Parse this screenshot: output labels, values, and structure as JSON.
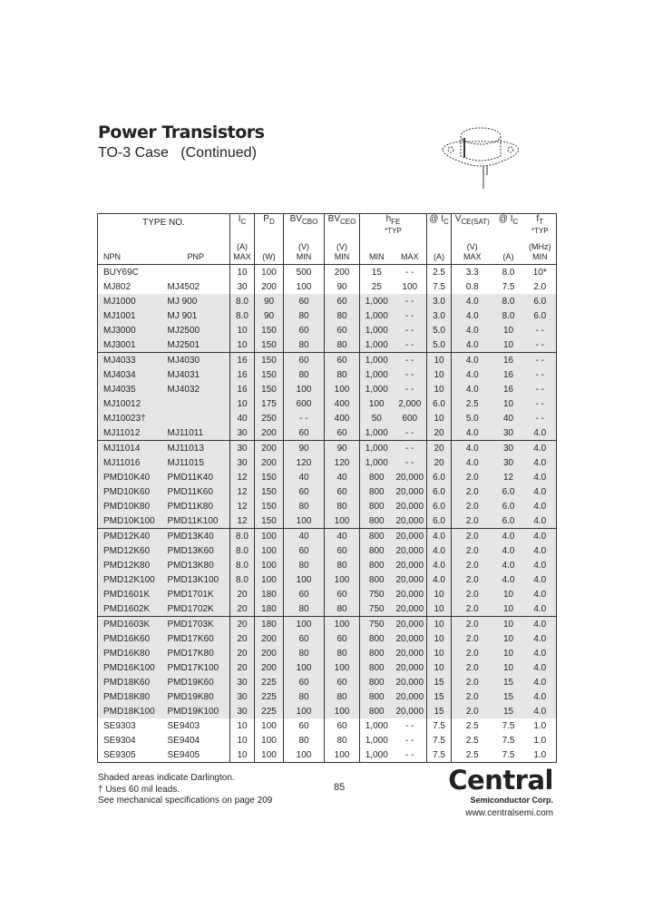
{
  "header": {
    "title": "Power Transistors",
    "subtitle": "TO-3 Case   (Continued)"
  },
  "table": {
    "type_no": "TYPE NO.",
    "col_heads": [
      "I",
      "C",
      "P",
      "D",
      "BV",
      "CBO",
      "BV",
      "CEO",
      "h",
      "FE",
      "*TYP",
      "@ I",
      "C",
      "V",
      "CE(SAT)",
      "@ I",
      "C",
      "f",
      "T",
      "*TYP"
    ],
    "units": [
      "NPN",
      "PNP",
      "(A)\nMAX",
      "(W)",
      "(V)\nMIN",
      "(V)\nMIN",
      "MIN",
      "MAX",
      "(A)",
      "(V)\nMAX",
      "(A)",
      "(MHz)\nMIN"
    ],
    "rows": [
      {
        "c": [
          "BUY69C",
          "",
          "10",
          "100",
          "500",
          "200",
          "15",
          "- -",
          "2.5",
          "3.3",
          "8.0",
          "10*"
        ],
        "shade": false,
        "grp": false
      },
      {
        "c": [
          "MJ802",
          "MJ4502",
          "30",
          "200",
          "100",
          "90",
          "25",
          "100",
          "7.5",
          "0.8",
          "7.5",
          "2.0"
        ],
        "shade": false,
        "grp": false
      },
      {
        "c": [
          "MJ1000",
          "MJ 900",
          "8.0",
          "90",
          "60",
          "60",
          "1,000",
          "- -",
          "3.0",
          "4.0",
          "8.0",
          "6.0"
        ],
        "shade": true,
        "grp": false
      },
      {
        "c": [
          "MJ1001",
          "MJ 901",
          "8.0",
          "90",
          "80",
          "80",
          "1,000",
          "- -",
          "3.0",
          "4.0",
          "8.0",
          "6.0"
        ],
        "shade": true,
        "grp": false
      },
      {
        "c": [
          "MJ3000",
          "MJ2500",
          "10",
          "150",
          "60",
          "60",
          "1,000",
          "- -",
          "5.0",
          "4.0",
          "10",
          "- -"
        ],
        "shade": true,
        "grp": false
      },
      {
        "c": [
          "MJ3001",
          "MJ2501",
          "10",
          "150",
          "80",
          "80",
          "1,000",
          "- -",
          "5.0",
          "4.0",
          "10",
          "- -"
        ],
        "shade": true,
        "grp": false
      },
      {
        "c": [
          "MJ4033",
          "MJ4030",
          "16",
          "150",
          "60",
          "60",
          "1,000",
          "- -",
          "10",
          "4.0",
          "16",
          "- -"
        ],
        "shade": true,
        "grp": true
      },
      {
        "c": [
          "MJ4034",
          "MJ4031",
          "16",
          "150",
          "80",
          "80",
          "1,000",
          "- -",
          "10",
          "4.0",
          "16",
          "- -"
        ],
        "shade": true,
        "grp": false
      },
      {
        "c": [
          "MJ4035",
          "MJ4032",
          "16",
          "150",
          "100",
          "100",
          "1,000",
          "- -",
          "10",
          "4.0",
          "16",
          "- -"
        ],
        "shade": true,
        "grp": false
      },
      {
        "c": [
          "MJ10012",
          "",
          "10",
          "175",
          "600",
          "400",
          "100",
          "2,000",
          "6.0",
          "2.5",
          "10",
          "- -"
        ],
        "shade": true,
        "grp": false
      },
      {
        "c": [
          "MJ10023†",
          "",
          "40",
          "250",
          "- -",
          "400",
          "50",
          "600",
          "10",
          "5.0",
          "40",
          "- -"
        ],
        "shade": true,
        "grp": false
      },
      {
        "c": [
          "MJ11012",
          "MJ11011",
          "30",
          "200",
          "60",
          "60",
          "1,000",
          "- -",
          "20",
          "4.0",
          "30",
          "4.0"
        ],
        "shade": true,
        "grp": false
      },
      {
        "c": [
          "MJ11014",
          "MJ11013",
          "30",
          "200",
          "90",
          "90",
          "1,000",
          "- -",
          "20",
          "4.0",
          "30",
          "4.0"
        ],
        "shade": true,
        "grp": true
      },
      {
        "c": [
          "MJ11016",
          "MJ11015",
          "30",
          "200",
          "120",
          "120",
          "1,000",
          "- -",
          "20",
          "4.0",
          "30",
          "4.0"
        ],
        "shade": true,
        "grp": false
      },
      {
        "c": [
          "PMD10K40",
          "PMD11K40",
          "12",
          "150",
          "40",
          "40",
          "800",
          "20,000",
          "6.0",
          "2.0",
          "12",
          "4.0"
        ],
        "shade": true,
        "grp": false
      },
      {
        "c": [
          "PMD10K60",
          "PMD11K60",
          "12",
          "150",
          "60",
          "60",
          "800",
          "20,000",
          "6.0",
          "2.0",
          "6.0",
          "4.0"
        ],
        "shade": true,
        "grp": false
      },
      {
        "c": [
          "PMD10K80",
          "PMD11K80",
          "12",
          "150",
          "80",
          "80",
          "800",
          "20,000",
          "6.0",
          "2.0",
          "6.0",
          "4.0"
        ],
        "shade": true,
        "grp": false
      },
      {
        "c": [
          "PMD10K100",
          "PMD11K100",
          "12",
          "150",
          "100",
          "100",
          "800",
          "20,000",
          "6.0",
          "2.0",
          "6.0",
          "4.0"
        ],
        "shade": true,
        "grp": false
      },
      {
        "c": [
          "PMD12K40",
          "PMD13K40",
          "8.0",
          "100",
          "40",
          "40",
          "800",
          "20,000",
          "4.0",
          "2.0",
          "4.0",
          "4.0"
        ],
        "shade": true,
        "grp": true
      },
      {
        "c": [
          "PMD12K60",
          "PMD13K60",
          "8.0",
          "100",
          "60",
          "60",
          "800",
          "20,000",
          "4.0",
          "2.0",
          "4.0",
          "4.0"
        ],
        "shade": true,
        "grp": false
      },
      {
        "c": [
          "PMD12K80",
          "PMD13K80",
          "8.0",
          "100",
          "80",
          "80",
          "800",
          "20,000",
          "4.0",
          "2.0",
          "4.0",
          "4.0"
        ],
        "shade": true,
        "grp": false
      },
      {
        "c": [
          "PMD12K100",
          "PMD13K100",
          "8.0",
          "100",
          "100",
          "100",
          "800",
          "20,000",
          "4.0",
          "2.0",
          "4.0",
          "4.0"
        ],
        "shade": true,
        "grp": false
      },
      {
        "c": [
          "PMD1601K",
          "PMD1701K",
          "20",
          "180",
          "60",
          "60",
          "750",
          "20,000",
          "10",
          "2.0",
          "10",
          "4.0"
        ],
        "shade": true,
        "grp": false
      },
      {
        "c": [
          "PMD1602K",
          "PMD1702K",
          "20",
          "180",
          "80",
          "80",
          "750",
          "20,000",
          "10",
          "2.0",
          "10",
          "4.0"
        ],
        "shade": true,
        "grp": false
      },
      {
        "c": [
          "PMD1603K",
          "PMD1703K",
          "20",
          "180",
          "100",
          "100",
          "750",
          "20,000",
          "10",
          "2.0",
          "10",
          "4.0"
        ],
        "shade": true,
        "grp": true
      },
      {
        "c": [
          "PMD16K60",
          "PMD17K60",
          "20",
          "200",
          "60",
          "60",
          "800",
          "20,000",
          "10",
          "2.0",
          "10",
          "4.0"
        ],
        "shade": true,
        "grp": false
      },
      {
        "c": [
          "PMD16K80",
          "PMD17K80",
          "20",
          "200",
          "80",
          "80",
          "800",
          "20,000",
          "10",
          "2.0",
          "10",
          "4.0"
        ],
        "shade": true,
        "grp": false
      },
      {
        "c": [
          "PMD16K100",
          "PMD17K100",
          "20",
          "200",
          "100",
          "100",
          "800",
          "20,000",
          "10",
          "2.0",
          "10",
          "4.0"
        ],
        "shade": true,
        "grp": false
      },
      {
        "c": [
          "PMD18K60",
          "PMD19K60",
          "30",
          "225",
          "60",
          "60",
          "800",
          "20,000",
          "15",
          "2.0",
          "15",
          "4.0"
        ],
        "shade": true,
        "grp": false
      },
      {
        "c": [
          "PMD18K80",
          "PMD19K80",
          "30",
          "225",
          "80",
          "80",
          "800",
          "20,000",
          "15",
          "2.0",
          "15",
          "4.0"
        ],
        "shade": true,
        "grp": false
      },
      {
        "c": [
          "PMD18K100",
          "PMD19K100",
          "30",
          "225",
          "100",
          "100",
          "800",
          "20,000",
          "15",
          "2.0",
          "15",
          "4.0"
        ],
        "shade": true,
        "grp": false
      },
      {
        "c": [
          "SE9303",
          "SE9403",
          "10",
          "100",
          "60",
          "60",
          "1,000",
          "- -",
          "7.5",
          "2.5",
          "7.5",
          "1.0"
        ],
        "shade": false,
        "grp": false
      },
      {
        "c": [
          "SE9304",
          "SE9404",
          "10",
          "100",
          "80",
          "80",
          "1,000",
          "- -",
          "7.5",
          "2.5",
          "7.5",
          "1.0"
        ],
        "shade": false,
        "grp": false
      },
      {
        "c": [
          "SE9305",
          "SE9405",
          "10",
          "100",
          "100",
          "100",
          "1,000",
          "- -",
          "7.5",
          "2.5",
          "7.5",
          "1.0"
        ],
        "shade": false,
        "grp": false
      }
    ]
  },
  "footer": {
    "notes": [
      "Shaded areas indicate Darlington.",
      "† Uses 60 mil leads.",
      "See mechanical specifications on page 209"
    ],
    "page_number": "85",
    "logo_text": "Central",
    "logo_tagline": "Semiconductor Corp.",
    "url": "www.centralsemi.com"
  },
  "colors": {
    "shade": "#e6e6e6",
    "rule": "#333333"
  }
}
